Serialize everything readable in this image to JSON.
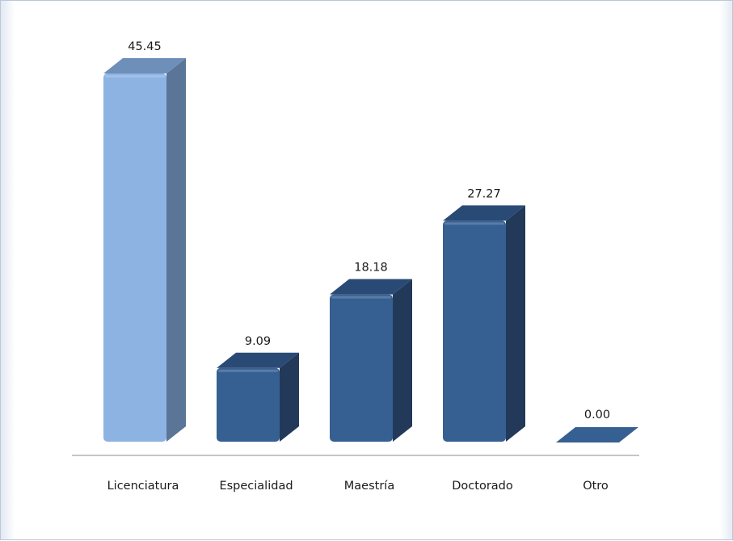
{
  "chart_data": {
    "type": "bar",
    "categories": [
      "Licenciatura",
      "Especialidad",
      "Maestría",
      "Doctorado",
      "Otro"
    ],
    "values": [
      45.45,
      9.09,
      18.18,
      27.27,
      0.0
    ],
    "value_labels": [
      "45.45",
      "9.09",
      "18.18",
      "27.27",
      "0.00"
    ],
    "highlight_index": 0,
    "title": "",
    "xlabel": "",
    "ylabel": "",
    "ylim": [
      0,
      50
    ],
    "grid": false,
    "legend": "none",
    "colors": {
      "highlight_front": "#8db3e2",
      "highlight_side": "#5a7597",
      "highlight_top": "#6e8fba",
      "bar_front": "#376092",
      "bar_side": "#23395a",
      "bar_top": "#2a4a76",
      "axis_line": "#8c8c8c"
    }
  }
}
